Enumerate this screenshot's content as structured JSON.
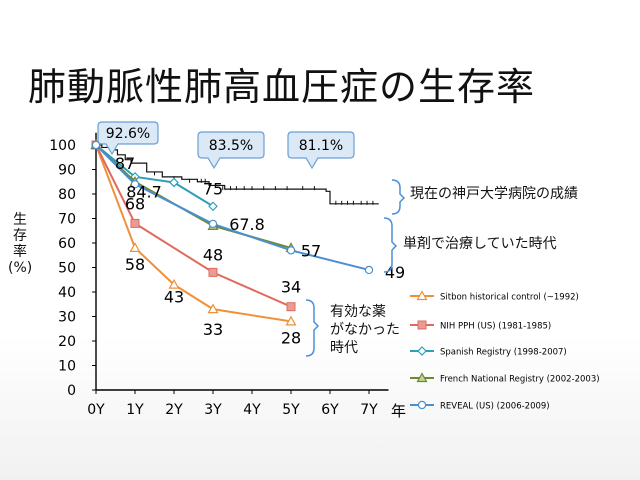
{
  "slide": {
    "title": "肺動脈性肺高血圧症の生存率",
    "y_axis_title": "生存率(%)",
    "x_axis_unit": "年",
    "notes": {
      "current": "現在の神戸大学病院の成績",
      "single": "単剤で治療していた時代",
      "none_line1": "有効な薬",
      "none_line2": "がなかった",
      "none_line3": "時代"
    },
    "callouts": [
      "92.6%",
      "83.5%",
      "81.1%"
    ]
  },
  "colors": {
    "sitbon": "#f0913a",
    "nih": "#e06b5c",
    "spanish": "#2f9fb8",
    "french": "#6e8a2e",
    "reveal": "#4a8fd0",
    "kobe": "#111111",
    "bracket": "#4a90d9",
    "callout_fill": "#dbe8f6",
    "callout_stroke": "#6a9fd6"
  },
  "chart_data": {
    "type": "line",
    "x": [
      "0Y",
      "1Y",
      "2Y",
      "3Y",
      "4Y",
      "5Y",
      "6Y",
      "7Y"
    ],
    "ylim": [
      0,
      100
    ],
    "yticks": [
      0,
      10,
      20,
      30,
      40,
      50,
      60,
      70,
      80,
      90,
      100
    ],
    "series": [
      {
        "name": "Sitbon historical control (~1992)",
        "marker": "triangle",
        "color_key": "sitbon",
        "points": [
          [
            0,
            100
          ],
          [
            1,
            58
          ],
          [
            2,
            43
          ],
          [
            3,
            33
          ],
          [
            5,
            28
          ]
        ],
        "labels": [
          {
            "x": 1,
            "y": 58,
            "text": "58"
          },
          {
            "x": 2,
            "y": 43,
            "text": "43"
          },
          {
            "x": 3,
            "y": 33,
            "text": "33"
          },
          {
            "x": 5,
            "y": 28,
            "text": "28"
          }
        ]
      },
      {
        "name": "NIH PPH (US) (1981-1985)",
        "marker": "square",
        "color_key": "nih",
        "points": [
          [
            0,
            100
          ],
          [
            1,
            68
          ],
          [
            3,
            48
          ],
          [
            5,
            34
          ]
        ],
        "labels": [
          {
            "x": 1,
            "y": 68,
            "text": "68"
          },
          {
            "x": 3,
            "y": 48,
            "text": "48"
          },
          {
            "x": 5,
            "y": 34,
            "text": "34"
          }
        ]
      },
      {
        "name": "Spanish Registry (1998-2007)",
        "marker": "diamond",
        "color_key": "spanish",
        "points": [
          [
            0,
            100
          ],
          [
            1,
            87
          ],
          [
            2,
            84.7
          ],
          [
            3,
            75
          ]
        ],
        "labels": [
          {
            "x": 1,
            "y": 87,
            "text": "87"
          },
          {
            "x": 2,
            "y": 84.7,
            "text": "84.7"
          },
          {
            "x": 3,
            "y": 75,
            "text": "75"
          }
        ]
      },
      {
        "name": "French National Registry (2002-2003)",
        "marker": "triangle-open",
        "color_key": "french",
        "points": [
          [
            0,
            100
          ],
          [
            1,
            85
          ],
          [
            3,
            67
          ],
          [
            5,
            58
          ]
        ],
        "labels": []
      },
      {
        "name": "REVEAL (US) (2006-2009)",
        "marker": "circle",
        "color_key": "reveal",
        "points": [
          [
            0,
            100
          ],
          [
            1,
            84
          ],
          [
            3,
            67.8
          ],
          [
            5,
            57
          ],
          [
            7,
            49
          ]
        ],
        "labels": [
          {
            "x": 3,
            "y": 67.8,
            "text": "67.8"
          },
          {
            "x": 5,
            "y": 57,
            "text": "57"
          },
          {
            "x": 7,
            "y": 49,
            "text": "49"
          }
        ]
      }
    ],
    "kaplan_meier": {
      "name": "Kobe University Hospital (current)",
      "steps": [
        [
          0,
          100
        ],
        [
          0.15,
          99
        ],
        [
          0.35,
          98
        ],
        [
          0.55,
          96
        ],
        [
          0.75,
          94
        ],
        [
          0.9,
          92.6
        ],
        [
          1.3,
          89
        ],
        [
          1.7,
          87
        ],
        [
          2.2,
          86
        ],
        [
          2.6,
          85
        ],
        [
          2.9,
          83.5
        ],
        [
          3.3,
          82
        ],
        [
          5.9,
          81.1
        ],
        [
          6.0,
          76
        ],
        [
          7.25,
          76
        ]
      ]
    }
  }
}
